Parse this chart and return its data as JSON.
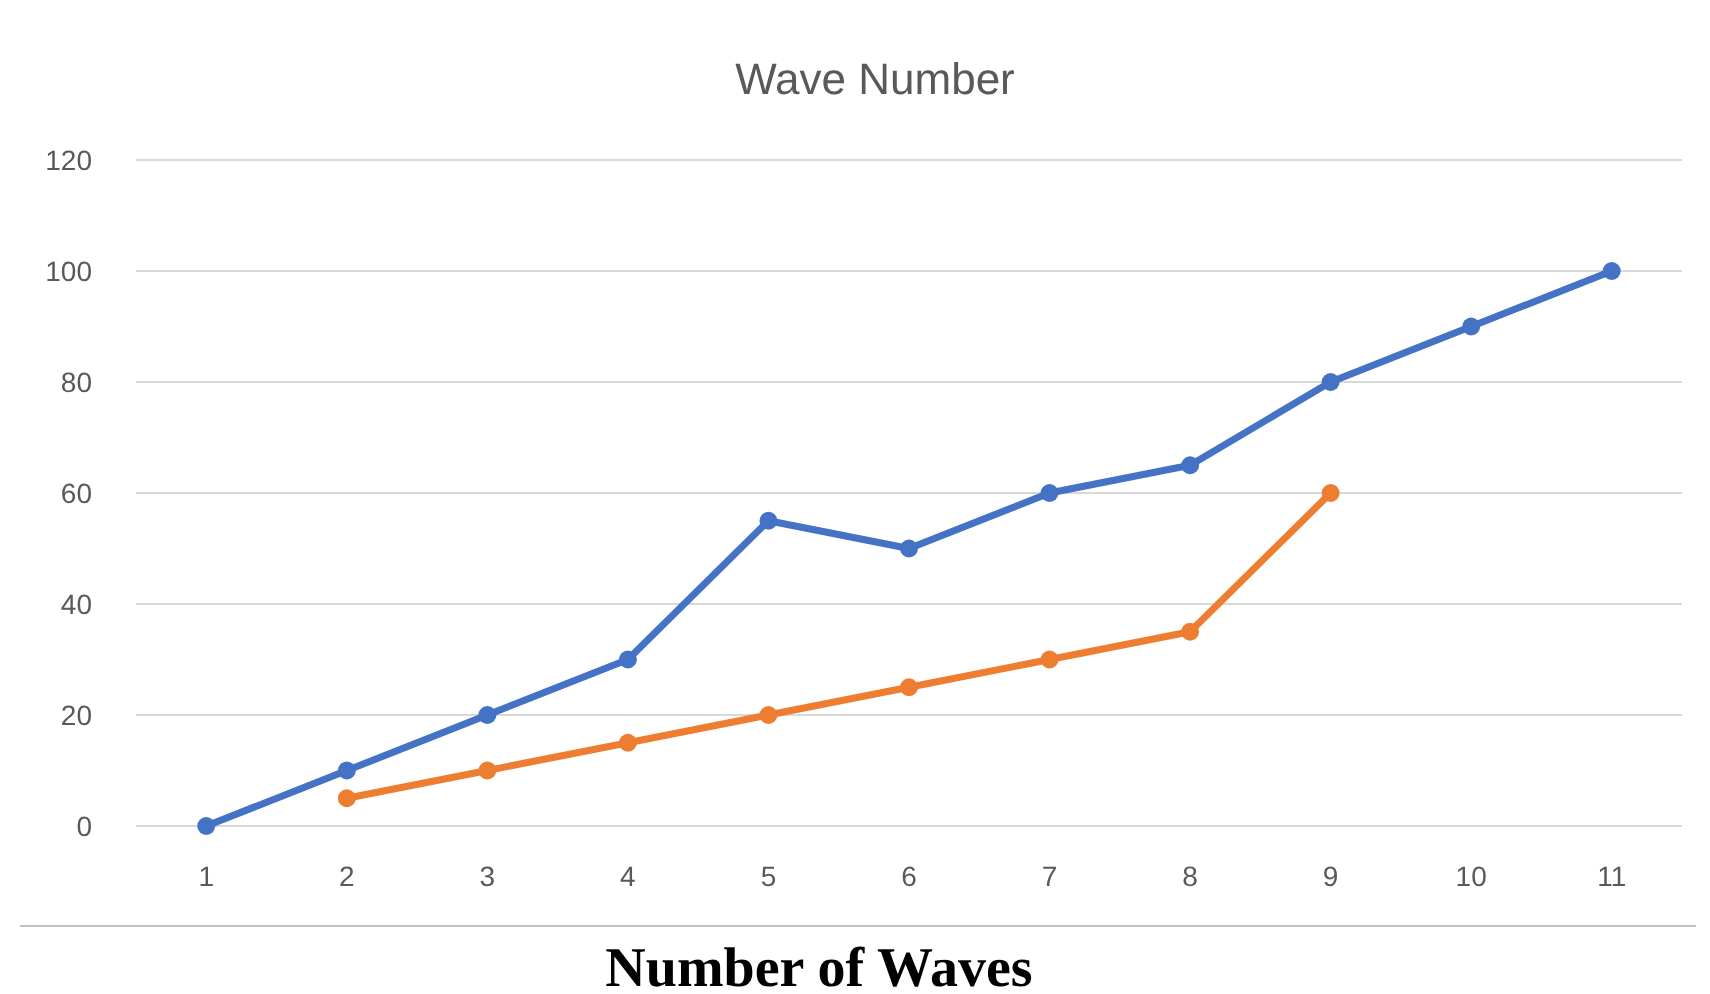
{
  "chart_data": {
    "type": "line",
    "title": "Wave Number",
    "xlabel": "Number of Waves",
    "categories": [
      "1",
      "2",
      "3",
      "4",
      "5",
      "6",
      "7",
      "8",
      "9",
      "10",
      "11"
    ],
    "series": [
      {
        "color": "#4472c4",
        "values": [
          0,
          10,
          20,
          30,
          55,
          50,
          60,
          65,
          80,
          90,
          100
        ]
      },
      {
        "color": "#ed7d31",
        "values": [
          null,
          5,
          10,
          15,
          20,
          25,
          30,
          35,
          60,
          null,
          null
        ]
      }
    ],
    "ylim": [
      0,
      120
    ],
    "yticks": [
      0,
      20,
      40,
      60,
      80,
      100,
      120
    ],
    "grid": "y",
    "marker": "circle",
    "line_style": "solid"
  }
}
